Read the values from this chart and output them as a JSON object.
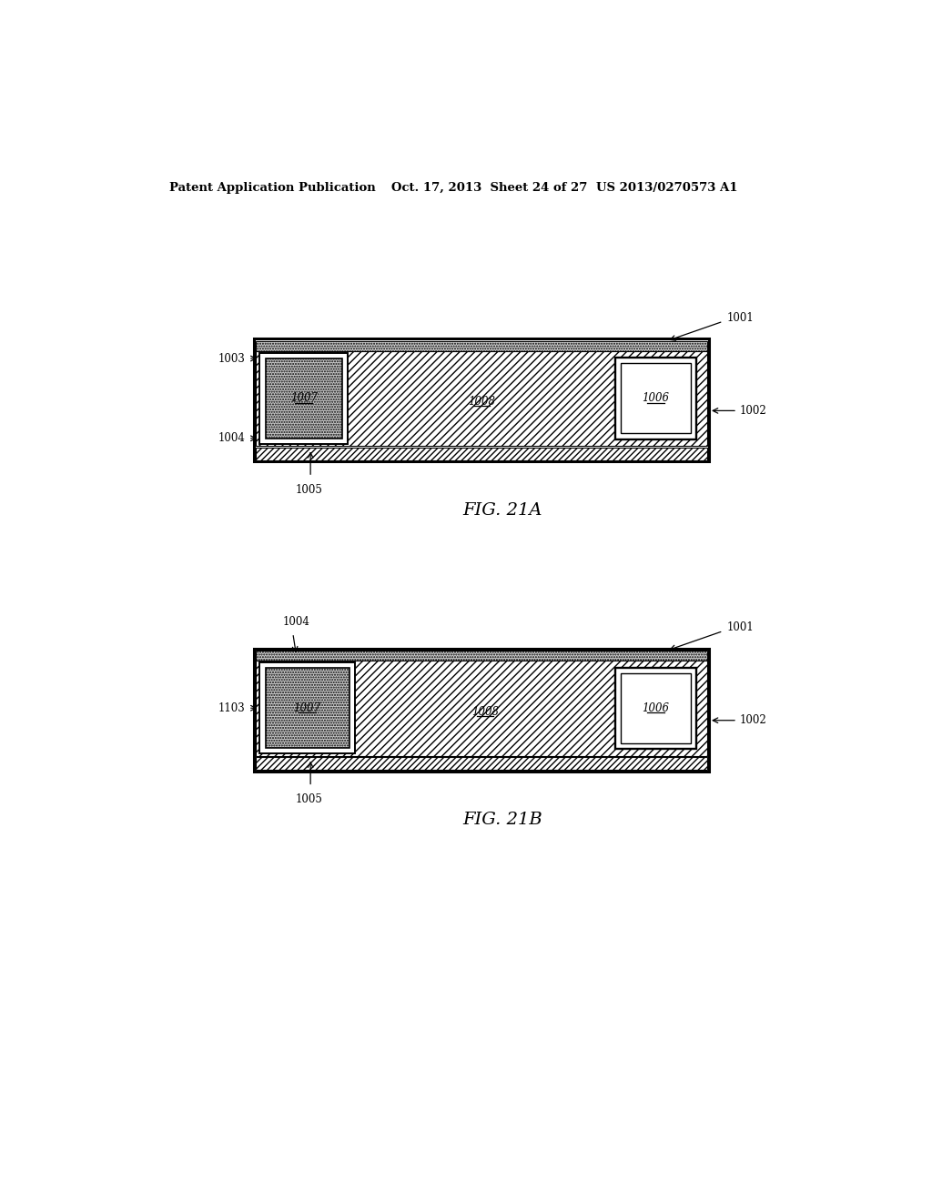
{
  "bg_color": "#ffffff",
  "header_left": "Patent Application Publication",
  "header_mid": "Oct. 17, 2013  Sheet 24 of 27",
  "header_right": "US 2013/0270573 A1",
  "fig21a_label": "FIG. 21A",
  "fig21b_label": "FIG. 21B"
}
